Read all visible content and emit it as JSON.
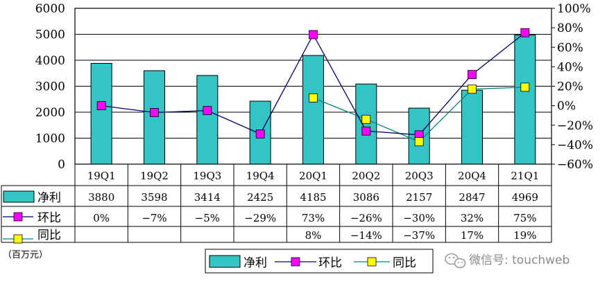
{
  "chart_data": {
    "type": "bar",
    "categories": [
      "19Q1",
      "19Q2",
      "19Q3",
      "19Q4",
      "20Q1",
      "20Q2",
      "20Q3",
      "20Q4",
      "21Q1"
    ],
    "series": [
      {
        "name": "净利",
        "kind": "bar",
        "axis": "left",
        "values": [
          3880,
          3598,
          3414,
          2425,
          4185,
          3086,
          2157,
          2847,
          4969
        ],
        "labels": [
          "3880",
          "3598",
          "3414",
          "2425",
          "4185",
          "3086",
          "2157",
          "2847",
          "4969"
        ]
      },
      {
        "name": "环比",
        "kind": "line",
        "axis": "right",
        "values": [
          0,
          -7,
          -5,
          -29,
          73,
          -26,
          -30,
          32,
          75
        ],
        "labels": [
          "0%",
          "−7%",
          "−5%",
          "−29%",
          "73%",
          "−26%",
          "−30%",
          "32%",
          "75%"
        ]
      },
      {
        "name": "同比",
        "kind": "line",
        "axis": "right",
        "values": [
          null,
          null,
          null,
          null,
          8,
          -14,
          -37,
          17,
          19
        ],
        "labels": [
          "",
          "",
          "",
          "",
          "8%",
          "−14%",
          "−37%",
          "17%",
          "19%"
        ]
      }
    ],
    "ylim_left": [
      0,
      6000
    ],
    "yticks_left": [
      "0",
      "1000",
      "2000",
      "3000",
      "4000",
      "5000",
      "6000"
    ],
    "ylim_right": [
      -60,
      100
    ],
    "yticks_right": [
      "−60%",
      "−40%",
      "−20%",
      "0%",
      "20%",
      "40%",
      "60%",
      "80%",
      "100%"
    ],
    "unit_label": "（百万元）",
    "legend": [
      "净利",
      "环比",
      "同比"
    ],
    "colors": {
      "bar": "#33c4c4",
      "bar_edge": "#000000",
      "mom_marker": "#ff00ff",
      "mom_line": "#000060",
      "yoy_marker": "#ffff00",
      "yoy_line": "#008080"
    }
  },
  "watermark": {
    "icon": "wechat-icon",
    "text": "微信号: touchweb"
  }
}
